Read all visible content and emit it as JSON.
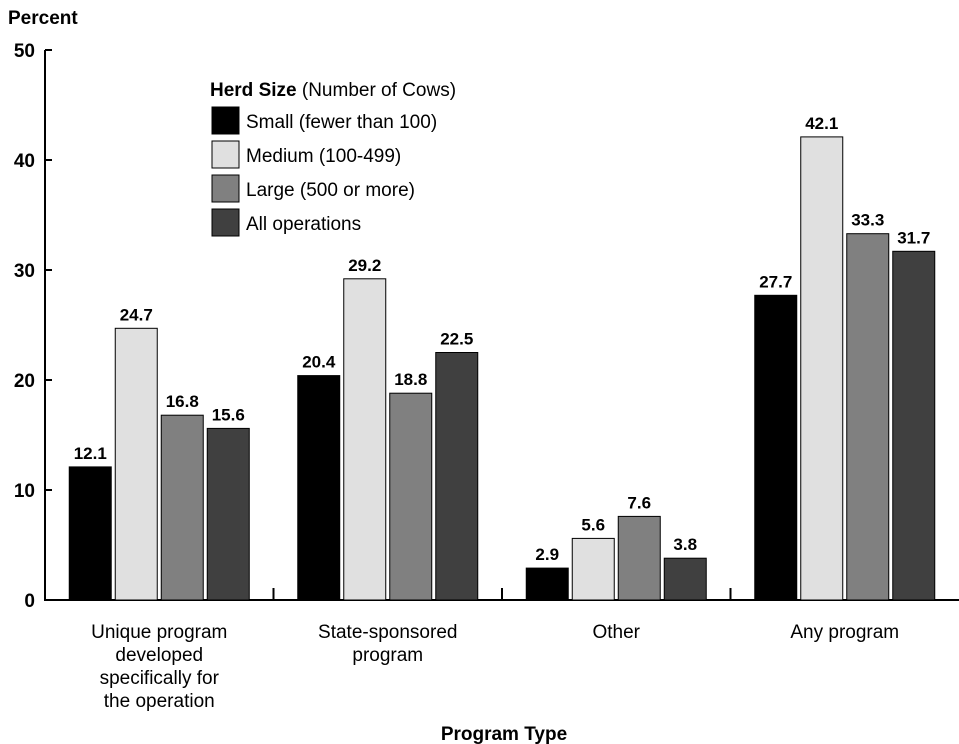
{
  "chart_data": {
    "type": "bar",
    "ylabel": "Percent",
    "xlabel": "Program Type",
    "ylim": [
      0,
      50
    ],
    "yticks": [
      0,
      10,
      20,
      30,
      40,
      50
    ],
    "grid": false,
    "legend_placement": "top-left",
    "legend_title_bold": "Herd Size",
    "legend_title_rest": " (Number of Cows)",
    "categories": [
      [
        "Unique program",
        "developed",
        "specifically for",
        "the operation"
      ],
      [
        "State-sponsored",
        "program"
      ],
      [
        "Other"
      ],
      [
        "Any program"
      ]
    ],
    "series": [
      {
        "name": "Small (fewer than 100)",
        "color": "#000000",
        "values": [
          12.1,
          20.4,
          2.9,
          27.7
        ]
      },
      {
        "name": "Medium (100-499)",
        "color": "#e0e0e0",
        "values": [
          24.7,
          29.2,
          5.6,
          42.1
        ]
      },
      {
        "name": "Large (500 or more)",
        "color": "#808080",
        "values": [
          16.8,
          18.8,
          7.6,
          33.3
        ]
      },
      {
        "name": "All operations",
        "color": "#404040",
        "values": [
          15.6,
          22.5,
          3.8,
          31.7
        ]
      }
    ]
  }
}
